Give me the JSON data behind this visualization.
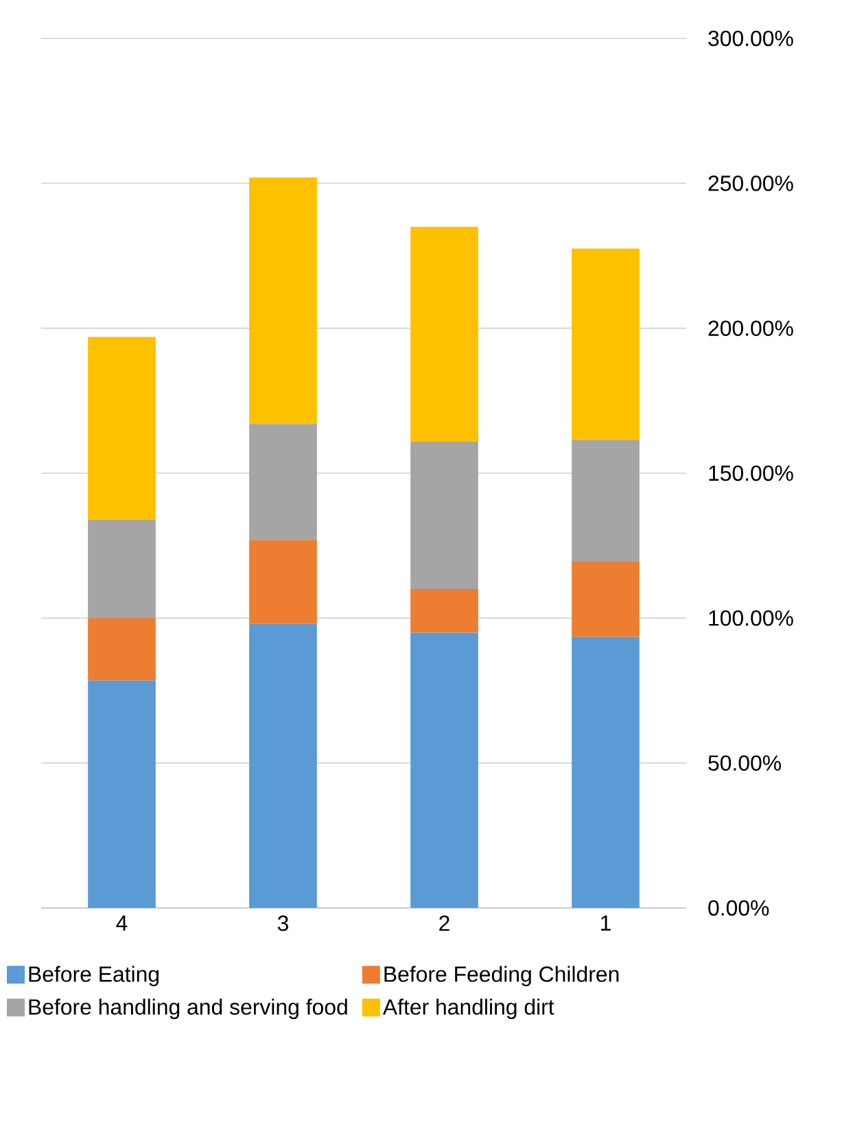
{
  "chart_data": {
    "type": "bar",
    "stacked": true,
    "categories": [
      "4",
      "3",
      "2",
      "1"
    ],
    "series": [
      {
        "name": "Before Eating",
        "color": "#5b9bd5",
        "values": [
          78.5,
          98,
          95,
          93.5
        ]
      },
      {
        "name": "Before Feeding Children",
        "color": "#ed7d31",
        "values": [
          21.5,
          29,
          15,
          26
        ]
      },
      {
        "name": "Before handling and serving food",
        "color": "#a5a5a5",
        "values": [
          34,
          40,
          51,
          42
        ]
      },
      {
        "name": "After handling dirt",
        "color": "#ffc000",
        "values": [
          63,
          85,
          74,
          66
        ]
      }
    ],
    "ylim": [
      0,
      300
    ],
    "yticks": [
      {
        "value": 0,
        "label": "0.00%"
      },
      {
        "value": 50,
        "label": "50.00%"
      },
      {
        "value": 100,
        "label": "100.00%"
      },
      {
        "value": 150,
        "label": "150.00%"
      },
      {
        "value": 200,
        "label": "200.00%"
      },
      {
        "value": 250,
        "label": "250.00%"
      },
      {
        "value": 300,
        "label": "300.00%"
      }
    ],
    "grid": "y",
    "legend": "bottom"
  }
}
